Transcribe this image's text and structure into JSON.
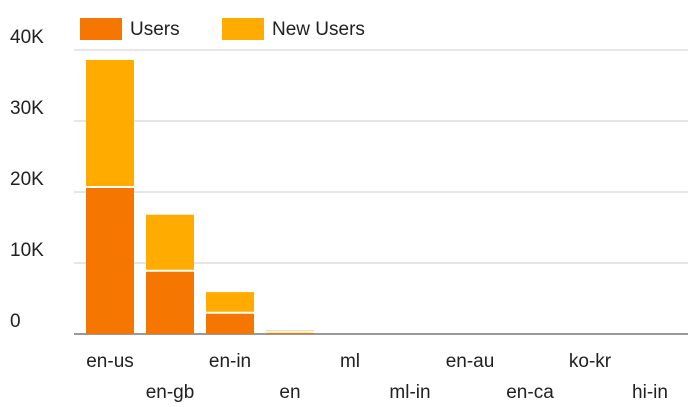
{
  "chart_data": {
    "type": "stacked_bar",
    "categories": [
      "en-us",
      "en-gb",
      "en-in",
      "en",
      "ml",
      "ml-in",
      "en-au",
      "en-ca",
      "ko-kr",
      "hi-in"
    ],
    "series": [
      {
        "name": "Users",
        "color": "#f57600",
        "values": [
          20700,
          8900,
          3000,
          300,
          0,
          0,
          0,
          0,
          0,
          0
        ]
      },
      {
        "name": "New Users",
        "color": "#ffab00",
        "values": [
          17900,
          7900,
          2900,
          200,
          0,
          0,
          0,
          0,
          0,
          0
        ]
      }
    ],
    "ylim": [
      0,
      40000
    ],
    "yticks": [
      0,
      {
        "value": 10000,
        "label": "10K"
      },
      {
        "value": 20000,
        "label": "20K"
      },
      {
        "value": 30000,
        "label": "30K"
      },
      {
        "value": 40000,
        "label": "40K"
      }
    ],
    "grid": true,
    "legend": "top"
  }
}
